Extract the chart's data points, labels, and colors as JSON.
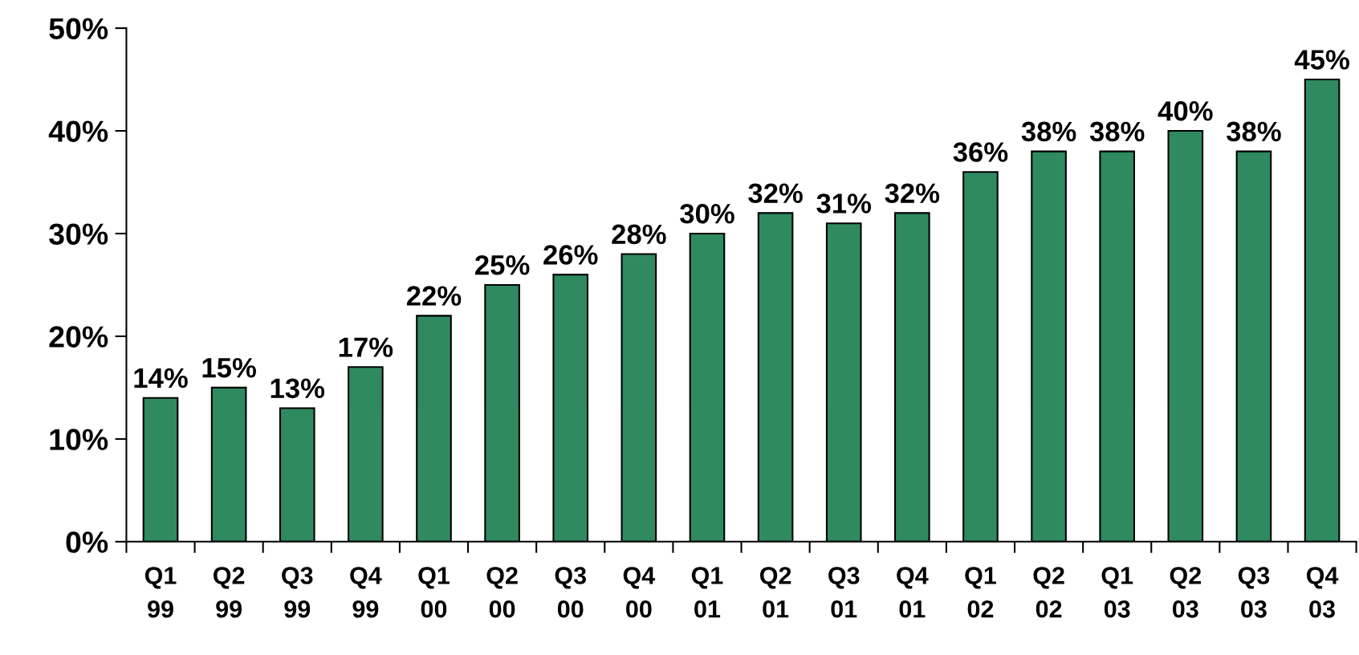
{
  "chart_data": {
    "type": "bar",
    "categories": [
      "Q1\n99",
      "Q2\n99",
      "Q3\n99",
      "Q4\n99",
      "Q1\n00",
      "Q2\n00",
      "Q3\n00",
      "Q4\n00",
      "Q1\n01",
      "Q2\n01",
      "Q3\n01",
      "Q4\n01",
      "Q1\n02",
      "Q2\n02",
      "Q1\n03",
      "Q2\n03",
      "Q3\n03",
      "Q4\n03"
    ],
    "values": [
      14,
      15,
      13,
      17,
      22,
      25,
      26,
      28,
      30,
      32,
      31,
      32,
      36,
      38,
      38,
      40,
      38,
      45
    ],
    "value_labels": [
      "14%",
      "15%",
      "13%",
      "17%",
      "22%",
      "25%",
      "26%",
      "28%",
      "30%",
      "32%",
      "31%",
      "32%",
      "36%",
      "38%",
      "38%",
      "40%",
      "38%",
      "45%"
    ],
    "color": "#2f8a60",
    "ylim": [
      0,
      50
    ],
    "yticks": [
      {
        "value": 0,
        "label": "0%"
      },
      {
        "value": 10,
        "label": "10%"
      },
      {
        "value": 20,
        "label": "20%"
      },
      {
        "value": 30,
        "label": "30%"
      },
      {
        "value": 40,
        "label": "40%"
      },
      {
        "value": 50,
        "label": "50%"
      }
    ],
    "grid": false
  }
}
